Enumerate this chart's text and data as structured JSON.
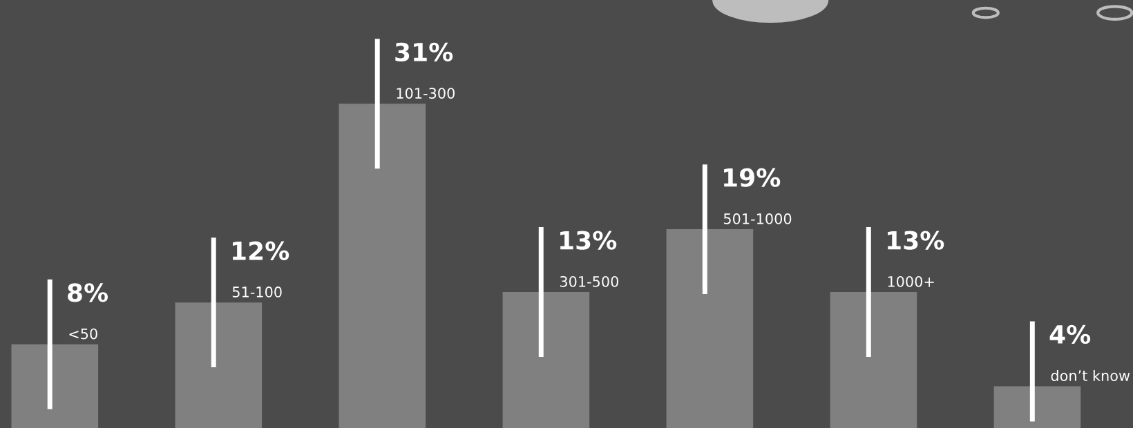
{
  "chart_data": {
    "type": "bar",
    "categories": [
      "<50",
      "51-100",
      "101-300",
      "301-500",
      "501-1000",
      "1000+",
      "don’t know"
    ],
    "values": [
      8,
      12,
      31,
      13,
      19,
      13,
      4
    ],
    "value_labels": [
      "8%",
      "12%",
      "31%",
      "13%",
      "19%",
      "13%",
      "4%"
    ],
    "color": "#808080"
  }
}
